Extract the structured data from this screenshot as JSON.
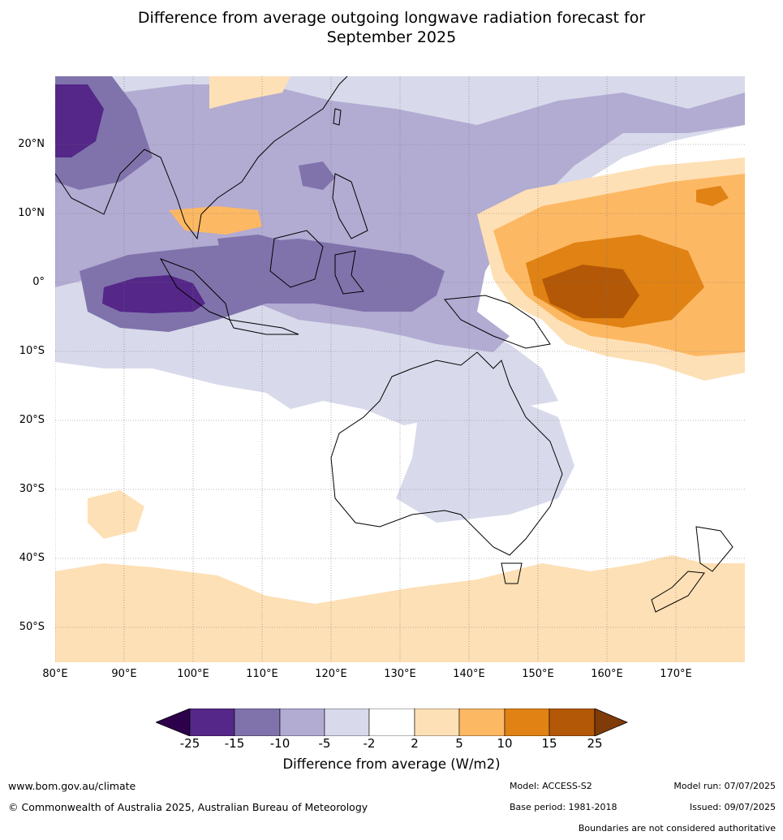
{
  "title_line1": "Difference from average outgoing longwave radiation forecast for",
  "title_line2": "September 2025",
  "lat_labels": [
    "20°N",
    "10°N",
    "0°",
    "10°S",
    "20°S",
    "30°S",
    "40°S",
    "50°S"
  ],
  "lon_labels": [
    "80°E",
    "90°E",
    "100°E",
    "110°E",
    "120°E",
    "130°E",
    "140°E",
    "150°E",
    "160°E",
    "170°E"
  ],
  "colorbar": {
    "ticks": [
      "-25",
      "-15",
      "-10",
      "-5",
      "-2",
      "2",
      "5",
      "10",
      "15",
      "25"
    ],
    "colors": [
      "#2d004b",
      "#542788",
      "#8073ac",
      "#b2abd2",
      "#d8daeb",
      "#ffffff",
      "#fee0b6",
      "#fdb863",
      "#e08214",
      "#b35806",
      "#7f3b08"
    ],
    "label": "Difference from average (W/m2)"
  },
  "footer": {
    "website": "www.bom.gov.au/climate",
    "copyright": "© Commonwealth of Australia 2025, Australian Bureau of Meteorology",
    "model": "Model: ACCESS-S2",
    "base_period": "Base period: 1981-2018",
    "model_run": "Model run: 07/07/2025",
    "issued": "Issued: 09/07/2025",
    "disclaimer": "Boundaries are not considered authoritative"
  }
}
